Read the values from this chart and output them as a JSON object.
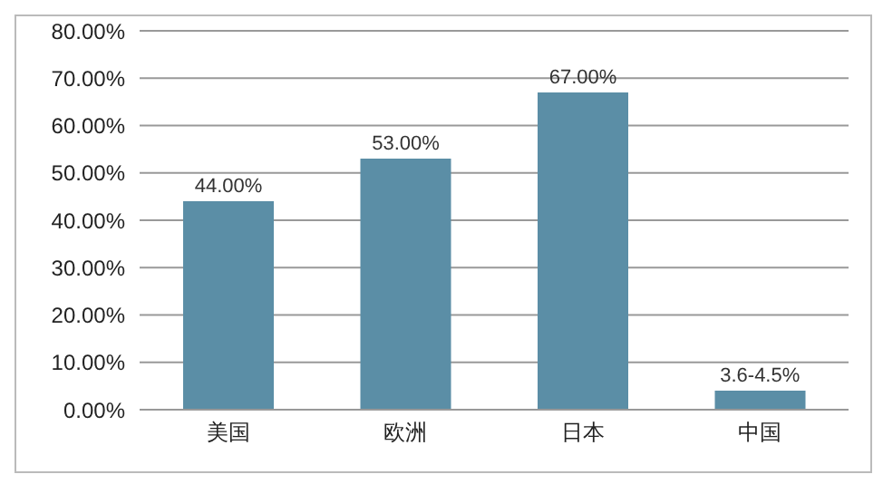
{
  "chart_data": {
    "type": "bar",
    "categories": [
      "美国",
      "欧洲",
      "日本",
      "中国"
    ],
    "values": [
      44,
      53,
      67,
      4
    ],
    "value_labels": [
      "44.00%",
      "53.00%",
      "67.00%",
      null
    ],
    "annotations": [
      {
        "text": "3.6-4.5%",
        "x": "中国",
        "y": 4
      }
    ],
    "color": "#5b8ea6",
    "ylim": [
      0,
      80
    ],
    "yticks": [
      {
        "value": 0,
        "label": "0.00%"
      },
      {
        "value": 10,
        "label": "10.00%"
      },
      {
        "value": 20,
        "label": "20.00%"
      },
      {
        "value": 30,
        "label": "30.00%"
      },
      {
        "value": 40,
        "label": "40.00%"
      },
      {
        "value": 50,
        "label": "50.00%"
      },
      {
        "value": 60,
        "label": "60.00%"
      },
      {
        "value": 70,
        "label": "70.00%"
      },
      {
        "value": 80,
        "label": "80.00%"
      }
    ],
    "grid": "y"
  }
}
